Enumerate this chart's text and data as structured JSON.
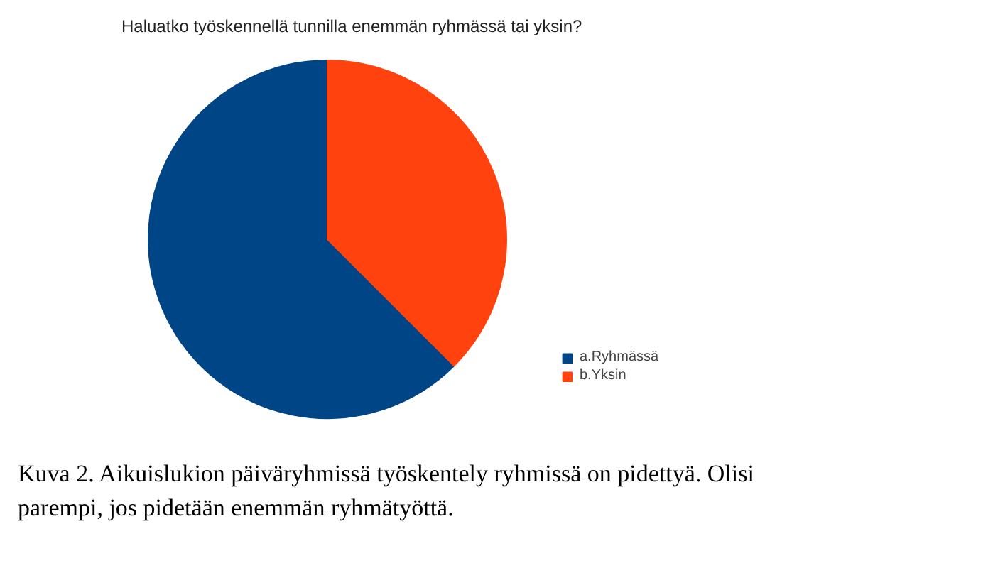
{
  "chart_data": {
    "type": "pie",
    "title": "Haluatko työskennellä tunnilla enemmän ryhmässä tai yksin?",
    "categories": [
      "a.Ryhmässä",
      "b.Yksin"
    ],
    "values": [
      62.5,
      37.5
    ],
    "colors": [
      "#004586",
      "#ff420e"
    ],
    "legend": "right",
    "annotations": [
      "Kuva 2. Aikuislukion päiväryhmissä työskentely ryhmissä on pidettyä. Olisi parempi, jos pidetään enemmän ryhmätyöttä."
    ]
  }
}
